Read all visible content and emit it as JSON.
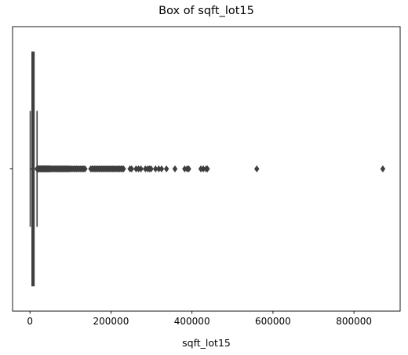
{
  "chart_data": {
    "type": "box",
    "title": "Box of sqft_lot15",
    "xlabel": "sqft_lot15",
    "ylabel": "",
    "xlim": [
      -43000,
      914000
    ],
    "x_ticks": [
      0,
      200000,
      400000,
      600000,
      800000
    ],
    "x_tick_labels": [
      "0",
      "200000",
      "400000",
      "600000",
      "800000"
    ],
    "grid": false,
    "colors": {
      "box_face": "#3274a1",
      "stroke": "#3f3f3f"
    },
    "box": {
      "whisker_low": 651,
      "q1": 5100,
      "median": 7620,
      "q3": 10083,
      "whisker_high": 17550
    },
    "outliers": [
      17600,
      18000,
      18500,
      19000,
      19500,
      20000,
      21000,
      22000,
      23000,
      24000,
      25000,
      26000,
      27000,
      28000,
      29000,
      30000,
      31000,
      32000,
      33000,
      34000,
      35000,
      36000,
      37000,
      38000,
      39000,
      40000,
      41000,
      42000,
      43000,
      44000,
      45000,
      46000,
      47000,
      48000,
      49000,
      50000,
      52000,
      54000,
      56000,
      58000,
      60000,
      62000,
      64000,
      66000,
      68000,
      70000,
      72000,
      74000,
      76000,
      78000,
      80000,
      82000,
      84000,
      86000,
      88000,
      90000,
      92000,
      94000,
      96000,
      98000,
      100000,
      103000,
      106000,
      109000,
      112000,
      115000,
      118000,
      121000,
      124000,
      127000,
      130000,
      133000,
      136000,
      150000,
      153000,
      156000,
      159000,
      162000,
      165000,
      168000,
      171000,
      174000,
      177000,
      180000,
      183000,
      186000,
      189000,
      192000,
      195000,
      198000,
      201000,
      204000,
      207000,
      210000,
      213000,
      216000,
      219000,
      222000,
      225000,
      228000,
      231000,
      247000,
      251000,
      262000,
      268000,
      274000,
      285000,
      291000,
      295000,
      299000,
      310000,
      318000,
      325000,
      337000,
      358000,
      382000,
      388000,
      392000,
      422000,
      428000,
      435000,
      438000,
      560000,
      871200
    ]
  }
}
